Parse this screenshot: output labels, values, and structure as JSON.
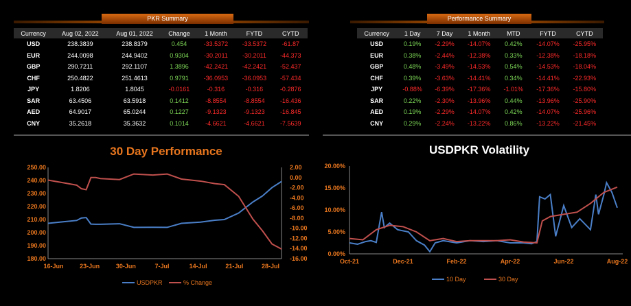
{
  "pkr_summary": {
    "title": "PKR Summary",
    "headers": [
      "Currency",
      "Aug 02, 2022",
      "Aug 01, 2022",
      "Change",
      "1 Month",
      "FYTD",
      "CYTD"
    ],
    "rows": [
      [
        "USD",
        "238.3839",
        "238.8379",
        "0.454",
        "-33.5372",
        "-33.5372",
        "-61.87"
      ],
      [
        "EUR",
        "244.0098",
        "244.9402",
        "0.9304",
        "-30.2011",
        "-30.2011",
        "-44.373"
      ],
      [
        "GBP",
        "290.7211",
        "292.1107",
        "1.3896",
        "-42.2421",
        "-42.2421",
        "-52.437"
      ],
      [
        "CHF",
        "250.4822",
        "251.4613",
        "0.9791",
        "-36.0953",
        "-36.0953",
        "-57.434"
      ],
      [
        "JPY",
        "1.8206",
        "1.8045",
        "-0.0161",
        "-0.316",
        "-0.316",
        "-0.2876"
      ],
      [
        "SAR",
        "63.4506",
        "63.5918",
        "0.1412",
        "-8.8554",
        "-8.8554",
        "-16.436"
      ],
      [
        "AED",
        "64.9017",
        "65.0244",
        "0.1227",
        "-9.1323",
        "-9.1323",
        "-16.845"
      ],
      [
        "CNY",
        "35.2618",
        "35.3632",
        "0.1014",
        "-4.6621",
        "-4.6621",
        "-7.5639"
      ]
    ]
  },
  "performance_summary": {
    "title": "Performance Summary",
    "headers": [
      "Currency",
      "1 Day",
      "7 Day",
      "1 Month",
      "MTD",
      "FYTD",
      "CYTD"
    ],
    "rows": [
      [
        "USD",
        "0.19%",
        "-2.29%",
        "-14.07%",
        "0.42%",
        "-14.07%",
        "-25.95%"
      ],
      [
        "EUR",
        "0.38%",
        "-2.44%",
        "-12.38%",
        "0.33%",
        "-12.38%",
        "-18.18%"
      ],
      [
        "GBP",
        "0.48%",
        "-3.49%",
        "-14.53%",
        "0.54%",
        "-14.53%",
        "-18.04%"
      ],
      [
        "CHF",
        "0.39%",
        "-3.63%",
        "-14.41%",
        "0.34%",
        "-14.41%",
        "-22.93%"
      ],
      [
        "JPY",
        "-0.88%",
        "-6.39%",
        "-17.36%",
        "-1.01%",
        "-17.36%",
        "-15.80%"
      ],
      [
        "SAR",
        "0.22%",
        "-2.30%",
        "-13.96%",
        "0.44%",
        "-13.96%",
        "-25.90%"
      ],
      [
        "AED",
        "0.19%",
        "-2.29%",
        "-14.07%",
        "0.42%",
        "-14.07%",
        "-25.96%"
      ],
      [
        "CNY",
        "0.29%",
        "-2.24%",
        "-13.22%",
        "0.86%",
        "-13.22%",
        "-21.45%"
      ]
    ]
  },
  "colors": {
    "orange": "#e8761e",
    "blue": "#4a7fc8",
    "red": "#c0504d",
    "positive": "#7ed957",
    "negative": "#ff2a2a"
  },
  "chart_data": [
    {
      "type": "line",
      "title": "30 Day Performance",
      "x_ticks": [
        "16-Jun",
        "23-Jun",
        "30-Jun",
        "7-Jul",
        "14-Jul",
        "21-Jul",
        "28-Jul"
      ],
      "y_left_ticks": [
        "180.00",
        "190.00",
        "200.00",
        "210.00",
        "220.00",
        "230.00",
        "240.00",
        "250.00"
      ],
      "y_right_ticks": [
        "-16.00",
        "-14.00",
        "-12.00",
        "-10.00",
        "-8.00",
        "-6.00",
        "-4.00",
        "-2.00",
        "0.00",
        "2.00"
      ],
      "ylim_left": [
        180,
        250
      ],
      "ylim_right": [
        -16,
        2
      ],
      "x_range": [
        0,
        49
      ],
      "legend_position": "bottom",
      "series": [
        {
          "name": "USDPKR",
          "axis": "left",
          "x": [
            0,
            3,
            6,
            7,
            8,
            9,
            10,
            11,
            15,
            18,
            22,
            25,
            28,
            32,
            35,
            37,
            40,
            43,
            45,
            47,
            49
          ],
          "y": [
            207.1,
            208.2,
            209.3,
            211.2,
            211.5,
            206.5,
            206.4,
            206.4,
            206.8,
            204,
            204.1,
            204,
            207.1,
            208,
            209.5,
            210,
            215,
            223.5,
            228.1,
            234.5,
            239.2
          ]
        },
        {
          "name": "% Change",
          "axis": "right",
          "x": [
            0,
            3,
            6,
            7,
            8,
            9,
            10,
            11,
            15,
            18,
            22,
            25,
            28,
            32,
            35,
            37,
            40,
            43,
            45,
            47,
            49
          ],
          "y": [
            -0.5,
            -1.0,
            -1.5,
            -2.2,
            -2.4,
            0,
            0,
            -0.2,
            -0.4,
            0.7,
            0.5,
            0.7,
            -0.3,
            -0.7,
            -1.2,
            -1.4,
            -3.7,
            -8.2,
            -10.5,
            -13.1,
            -14.1
          ]
        }
      ]
    },
    {
      "type": "line",
      "title": "USDPKR Volatility",
      "x_ticks": [
        "Oct-21",
        "Dec-21",
        "Feb-22",
        "Apr-22",
        "Jun-22",
        "Aug-22"
      ],
      "y_ticks": [
        "0.00%",
        "5.00%",
        "10.00%",
        "15.00%",
        "20.00%"
      ],
      "ylim": [
        0,
        20
      ],
      "x_range": [
        0,
        10
      ],
      "legend_position": "bottom",
      "series": [
        {
          "name": "10 Day",
          "x": [
            0,
            0.3,
            0.6,
            0.8,
            1.0,
            1.2,
            1.3,
            1.5,
            1.8,
            2.2,
            2.5,
            2.8,
            3.0,
            3.2,
            3.5,
            4.0,
            4.5,
            5.0,
            5.5,
            6.0,
            6.5,
            6.8,
            7.0,
            7.1,
            7.3,
            7.5,
            7.7,
            8.0,
            8.3,
            8.6,
            9.0,
            9.2,
            9.3,
            9.5,
            9.6,
            9.8,
            10.0
          ],
          "y": [
            2.5,
            2.2,
            2.8,
            3.0,
            2.6,
            9.5,
            6.0,
            7.0,
            5.5,
            5.0,
            3.0,
            2.0,
            0.5,
            2.5,
            3.0,
            2.5,
            3.0,
            2.8,
            3.0,
            2.5,
            2.5,
            2.3,
            2.8,
            13.0,
            12.5,
            13.5,
            4.0,
            11.0,
            6.0,
            8.0,
            5.5,
            13.5,
            9.0,
            13.5,
            16.2,
            14.0,
            10.5
          ]
        },
        {
          "name": "30 Day",
          "x": [
            0,
            0.5,
            1.0,
            1.5,
            2.0,
            2.5,
            3.0,
            3.5,
            4.0,
            4.5,
            5.0,
            5.5,
            6.0,
            6.5,
            7.0,
            7.2,
            7.5,
            8.0,
            8.5,
            9.0,
            9.5,
            10.0
          ],
          "y": [
            3.5,
            3.2,
            5.5,
            6.5,
            6.2,
            5.0,
            3.0,
            3.5,
            2.8,
            3.0,
            3.0,
            3.0,
            3.2,
            2.7,
            2.5,
            7.5,
            8.5,
            9.0,
            9.5,
            11.5,
            14.0,
            15.2
          ]
        }
      ]
    }
  ]
}
